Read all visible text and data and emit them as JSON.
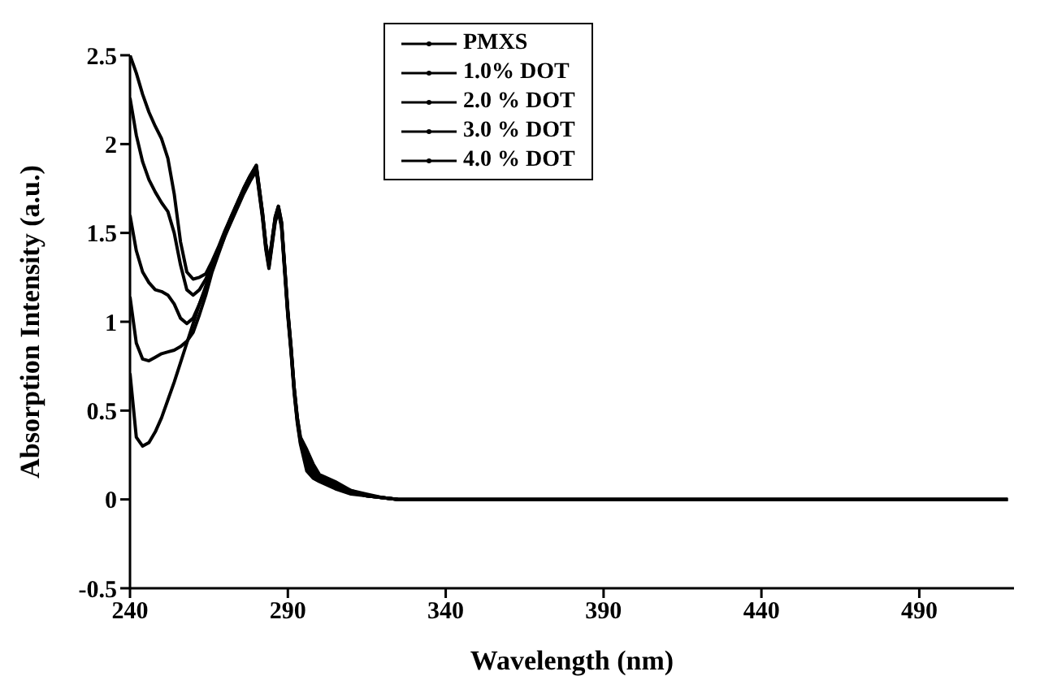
{
  "chart_data": {
    "type": "line",
    "xlabel": "Wavelength (nm)",
    "ylabel": "Absorption Intensity (a.u.)",
    "x": [
      240,
      242,
      244,
      246,
      248,
      250,
      252,
      254,
      256,
      258,
      260,
      262,
      264,
      266,
      268,
      270,
      272,
      274,
      276,
      278,
      280,
      282,
      283,
      284,
      285,
      286,
      287,
      288,
      289,
      290,
      291,
      292,
      293,
      294,
      296,
      298,
      300,
      305,
      310,
      315,
      320,
      325,
      518
    ],
    "series": [
      {
        "name": "PMXS",
        "color": "#000000",
        "values": [
          0.71,
          0.35,
          0.3,
          0.32,
          0.38,
          0.46,
          0.56,
          0.66,
          0.77,
          0.88,
          0.99,
          1.1,
          1.2,
          1.3,
          1.39,
          1.48,
          1.56,
          1.64,
          1.72,
          1.79,
          1.85,
          1.58,
          1.41,
          1.3,
          1.43,
          1.56,
          1.62,
          1.53,
          1.28,
          1.03,
          0.83,
          0.6,
          0.43,
          0.31,
          0.16,
          0.12,
          0.1,
          0.06,
          0.03,
          0.02,
          0.01,
          0,
          0
        ]
      },
      {
        "name": "1.0% DOT",
        "color": "#000000",
        "values": [
          1.14,
          0.88,
          0.79,
          0.78,
          0.8,
          0.82,
          0.83,
          0.84,
          0.86,
          0.89,
          0.94,
          1.04,
          1.15,
          1.28,
          1.38,
          1.48,
          1.57,
          1.65,
          1.73,
          1.8,
          1.86,
          1.59,
          1.42,
          1.31,
          1.44,
          1.57,
          1.63,
          1.54,
          1.29,
          1.04,
          0.84,
          0.61,
          0.44,
          0.32,
          0.19,
          0.14,
          0.11,
          0.07,
          0.04,
          0.02,
          0.01,
          0,
          0
        ]
      },
      {
        "name": "2.0 % DOT",
        "color": "#000000",
        "values": [
          1.6,
          1.4,
          1.28,
          1.22,
          1.18,
          1.17,
          1.15,
          1.1,
          1.02,
          0.99,
          1.02,
          1.1,
          1.19,
          1.3,
          1.4,
          1.49,
          1.58,
          1.66,
          1.74,
          1.81,
          1.87,
          1.6,
          1.43,
          1.32,
          1.45,
          1.58,
          1.64,
          1.55,
          1.3,
          1.05,
          0.85,
          0.62,
          0.45,
          0.33,
          0.22,
          0.16,
          0.12,
          0.08,
          0.04,
          0.02,
          0.01,
          0,
          0
        ]
      },
      {
        "name": "3.0 % DOT",
        "color": "#000000",
        "values": [
          2.26,
          2.05,
          1.9,
          1.8,
          1.73,
          1.67,
          1.62,
          1.5,
          1.32,
          1.18,
          1.15,
          1.18,
          1.24,
          1.32,
          1.41,
          1.5,
          1.59,
          1.67,
          1.75,
          1.82,
          1.88,
          1.61,
          1.44,
          1.33,
          1.46,
          1.59,
          1.65,
          1.56,
          1.31,
          1.06,
          0.86,
          0.63,
          0.46,
          0.34,
          0.25,
          0.18,
          0.13,
          0.09,
          0.05,
          0.02,
          0.01,
          0,
          0
        ]
      },
      {
        "name": "4.0 % DOT",
        "color": "#000000",
        "values": [
          2.5,
          2.4,
          2.28,
          2.18,
          2.1,
          2.03,
          1.92,
          1.72,
          1.45,
          1.28,
          1.24,
          1.25,
          1.27,
          1.34,
          1.42,
          1.51,
          1.59,
          1.67,
          1.75,
          1.82,
          1.88,
          1.61,
          1.44,
          1.33,
          1.46,
          1.59,
          1.65,
          1.56,
          1.31,
          1.06,
          0.86,
          0.63,
          0.46,
          0.35,
          0.28,
          0.2,
          0.14,
          0.1,
          0.05,
          0.03,
          0.01,
          0,
          0
        ]
      }
    ],
    "xlim": [
      240,
      520
    ],
    "xticks": [
      240,
      290,
      340,
      390,
      440,
      490
    ],
    "ylim": [
      -0.5,
      2.5
    ],
    "yticks": [
      -0.5,
      0,
      0.5,
      1,
      1.5,
      2,
      2.5
    ],
    "legend": "top",
    "grid": false,
    "marker": "none",
    "line_style": "solid"
  }
}
